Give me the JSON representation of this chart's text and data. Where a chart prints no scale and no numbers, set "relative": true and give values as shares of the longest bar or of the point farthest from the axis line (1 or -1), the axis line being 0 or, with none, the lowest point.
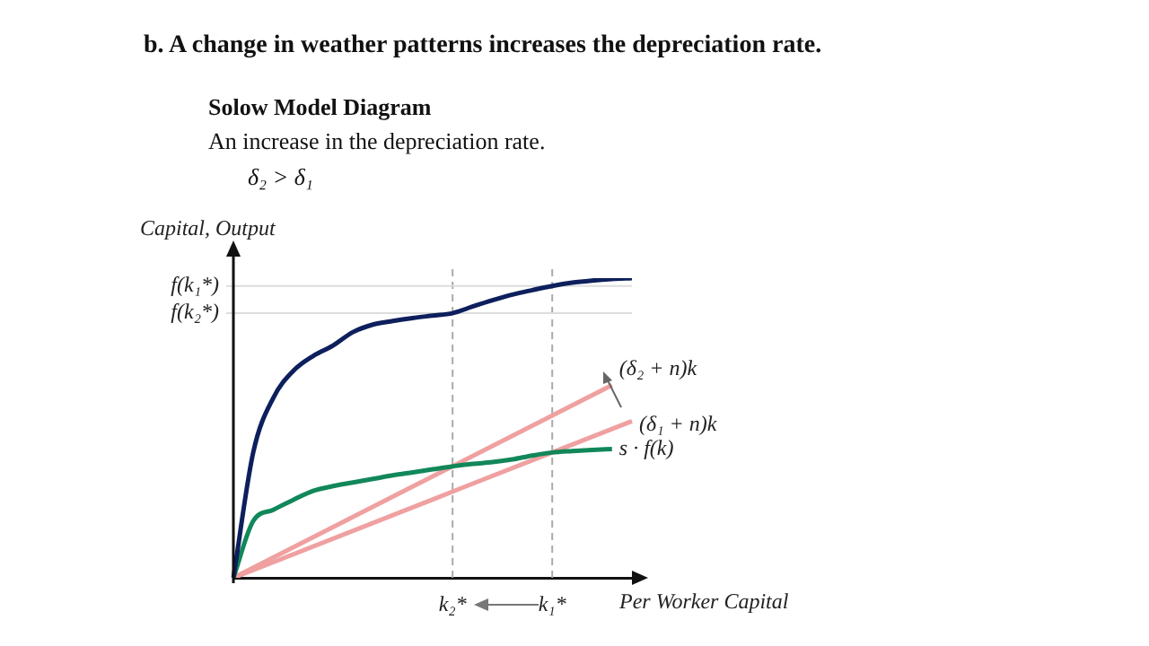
{
  "chart_data": {
    "type": "line",
    "title": "b. A change in weather patterns increases the depreciation rate.",
    "subtitle": "Solow Model Diagram",
    "annotations": [
      "An increase in the depreciation rate.",
      "δ₂ > δ₁"
    ],
    "xlabel": "Per Worker Capital",
    "ylabel": "Capital, Output",
    "relative": true,
    "legend": false,
    "grid": "x",
    "marker": "none",
    "line_style": "solid",
    "categories": [
      null,
      null,
      null,
      null,
      null,
      null,
      null,
      null,
      null,
      null,
      null,
      "k₂*",
      null,
      null,
      null,
      null,
      "k₁*",
      null,
      null,
      null,
      null
    ],
    "series": [
      {
        "color": "#0d1f5c",
        "values": [
          0,
          0.42,
          0.6,
          0.69,
          0.74,
          0.775,
          0.82,
          0.845,
          0.857,
          0.867,
          0.875,
          0.883,
          0.905,
          0.926,
          0.945,
          0.96,
          0.974,
          0.985,
          0.992,
          0.997,
          1.0
        ]
      },
      {
        "name": "s · f(k)",
        "color": "#11875a",
        "values": [
          0,
          0.19,
          0.227,
          0.26,
          0.29,
          0.306,
          0.318,
          0.33,
          0.342,
          0.352,
          0.362,
          0.372,
          0.38,
          0.386,
          0.395,
          0.408,
          0.418,
          0.423,
          0.427,
          0.43,
          null
        ]
      },
      {
        "name": "(δ₂ + n)k",
        "color": "#f0a0a0",
        "values": [
          0,
          null,
          null,
          null,
          null,
          null,
          null,
          null,
          null,
          null,
          null,
          null,
          null,
          null,
          null,
          null,
          null,
          null,
          null,
          0.643,
          null
        ]
      },
      {
        "name": "(δ₁ + n)k",
        "color": "#f0a0a0",
        "values": [
          0,
          null,
          null,
          null,
          null,
          null,
          null,
          null,
          null,
          null,
          null,
          null,
          null,
          null,
          null,
          null,
          null,
          null,
          null,
          null,
          0.523
        ]
      }
    ],
    "ref_lines": [
      {
        "axis": "y",
        "value": 0.974,
        "label": "f(k₁*)",
        "color": "#dddddd"
      },
      {
        "axis": "y",
        "value": 0.883,
        "label": "f(k₂*)",
        "color": "#dddddd"
      }
    ]
  }
}
